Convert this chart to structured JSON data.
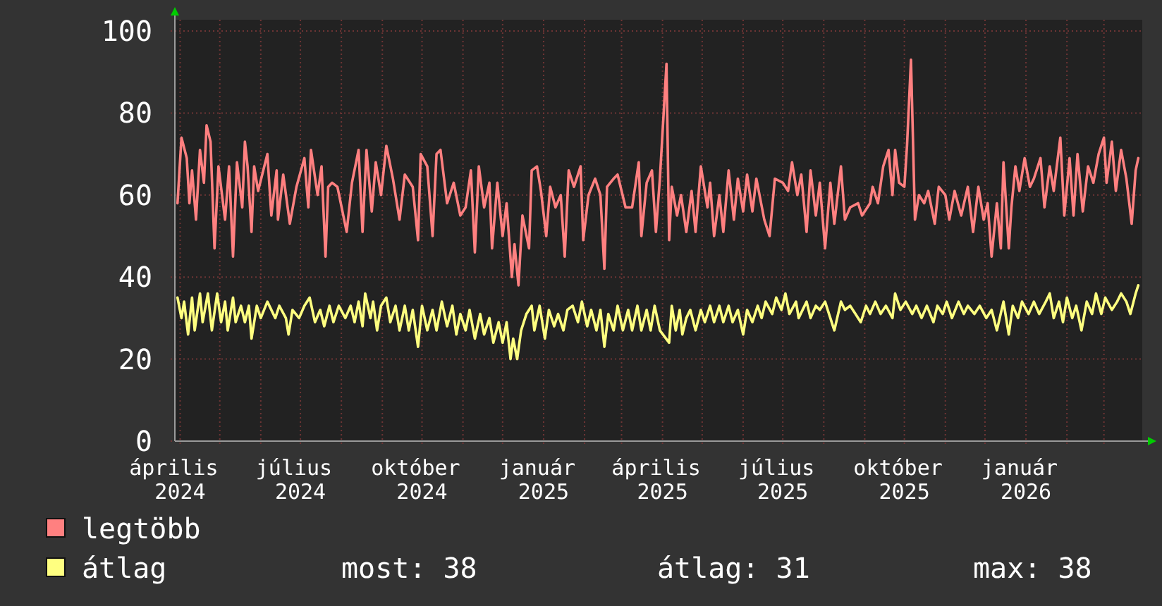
{
  "chart_data": {
    "type": "line",
    "xlim": [
      "2024-03-28",
      "2026-03-30"
    ],
    "ylim": [
      0,
      100
    ],
    "yticks": [
      0,
      20,
      40,
      60,
      80,
      100
    ],
    "xticks": [
      {
        "value": "2024-04-01",
        "label": "április 2024"
      },
      {
        "value": "2024-05-01",
        "label": null
      },
      {
        "value": "2024-06-01",
        "label": null
      },
      {
        "value": "2024-07-01",
        "label": "július 2024"
      },
      {
        "value": "2024-08-01",
        "label": null
      },
      {
        "value": "2024-09-01",
        "label": null
      },
      {
        "value": "2024-10-01",
        "label": "október 2024"
      },
      {
        "value": "2024-11-01",
        "label": null
      },
      {
        "value": "2024-12-01",
        "label": null
      },
      {
        "value": "2025-01-01",
        "label": "január 2025"
      },
      {
        "value": "2025-02-01",
        "label": null
      },
      {
        "value": "2025-03-01",
        "label": null
      },
      {
        "value": "2025-04-01",
        "label": "április 2025"
      },
      {
        "value": "2025-05-01",
        "label": null
      },
      {
        "value": "2025-06-01",
        "label": null
      },
      {
        "value": "2025-07-01",
        "label": "július 2025"
      },
      {
        "value": "2025-08-01",
        "label": null
      },
      {
        "value": "2025-09-01",
        "label": null
      },
      {
        "value": "2025-10-01",
        "label": "október 2025"
      },
      {
        "value": "2025-11-01",
        "label": null
      },
      {
        "value": "2025-12-01",
        "label": null
      },
      {
        "value": "2026-01-01",
        "label": "január 2026"
      },
      {
        "value": "2026-02-01",
        "label": null
      },
      {
        "value": "2026-03-01",
        "label": null
      }
    ],
    "grid": true,
    "legend": "bottom left",
    "annotations": [
      "most: 38",
      "átlag: 31",
      "max: 38"
    ],
    "series": [
      {
        "name": "legtöbb",
        "color": "#ff8080",
        "x": [
          "2024-03-30",
          "2024-04-02",
          "2024-04-06",
          "2024-04-08",
          "2024-04-10",
          "2024-04-13",
          "2024-04-16",
          "2024-04-19",
          "2024-04-21",
          "2024-04-24",
          "2024-04-27",
          "2024-04-30",
          "2024-05-05",
          "2024-05-08",
          "2024-05-11",
          "2024-05-14",
          "2024-05-18",
          "2024-05-20",
          "2024-05-22",
          "2024-05-25",
          "2024-05-27",
          "2024-05-30",
          "2024-06-06",
          "2024-06-09",
          "2024-06-13",
          "2024-06-14",
          "2024-06-18",
          "2024-06-23",
          "2024-06-28",
          "2024-07-04",
          "2024-07-07",
          "2024-07-09",
          "2024-07-14",
          "2024-07-17",
          "2024-07-20",
          "2024-07-22",
          "2024-07-25",
          "2024-07-29",
          "2024-08-05",
          "2024-08-09",
          "2024-08-14",
          "2024-08-17",
          "2024-08-20",
          "2024-08-24",
          "2024-08-27",
          "2024-08-31",
          "2024-09-04",
          "2024-09-09",
          "2024-09-14",
          "2024-09-18",
          "2024-09-24",
          "2024-09-28",
          "2024-09-30",
          "2024-10-05",
          "2024-10-09",
          "2024-10-12",
          "2024-10-15",
          "2024-10-20",
          "2024-10-25",
          "2024-10-30",
          "2024-11-03",
          "2024-11-07",
          "2024-11-10",
          "2024-11-13",
          "2024-11-17",
          "2024-11-21",
          "2024-11-23",
          "2024-11-27",
          "2024-12-01",
          "2024-12-04",
          "2024-12-08",
          "2024-12-10",
          "2024-12-13",
          "2024-12-16",
          "2024-12-21",
          "2024-12-23",
          "2024-12-27",
          "2024-12-30",
          "2025-01-03",
          "2025-01-06",
          "2025-01-10",
          "2025-01-14",
          "2025-01-17",
          "2025-01-20",
          "2025-01-24",
          "2025-01-29",
          "2025-01-31",
          "2025-02-04",
          "2025-02-09",
          "2025-02-13",
          "2025-02-16",
          "2025-02-18",
          "2025-02-23",
          "2025-02-26",
          "2025-03-04",
          "2025-03-09",
          "2025-03-14",
          "2025-03-16",
          "2025-03-20",
          "2025-03-24",
          "2025-03-27",
          "2025-03-30",
          "2025-04-04",
          "2025-04-06",
          "2025-04-08",
          "2025-04-12",
          "2025-04-15",
          "2025-04-19",
          "2025-04-23",
          "2025-04-26",
          "2025-04-30",
          "2025-05-05",
          "2025-05-07",
          "2025-05-10",
          "2025-05-14",
          "2025-05-17",
          "2025-05-21",
          "2025-05-25",
          "2025-05-28",
          "2025-06-01",
          "2025-06-04",
          "2025-06-08",
          "2025-06-11",
          "2025-06-17",
          "2025-06-21",
          "2025-06-25",
          "2025-07-01",
          "2025-07-05",
          "2025-07-08",
          "2025-07-12",
          "2025-07-15",
          "2025-07-19",
          "2025-07-22",
          "2025-07-26",
          "2025-07-29",
          "2025-08-02",
          "2025-08-06",
          "2025-08-09",
          "2025-08-14",
          "2025-08-17",
          "2025-08-21",
          "2025-08-27",
          "2025-08-30",
          "2025-09-05",
          "2025-09-07",
          "2025-09-11",
          "2025-09-15",
          "2025-09-19",
          "2025-09-22",
          "2025-09-24",
          "2025-09-27",
          "2025-10-01",
          "2025-10-03",
          "2025-10-06",
          "2025-10-09",
          "2025-10-12",
          "2025-10-16",
          "2025-10-19",
          "2025-10-24",
          "2025-10-27",
          "2025-11-01",
          "2025-11-04",
          "2025-11-08",
          "2025-11-13",
          "2025-11-18",
          "2025-11-22",
          "2025-11-26",
          "2025-11-30",
          "2025-12-03",
          "2025-12-06",
          "2025-12-10",
          "2025-12-13",
          "2025-12-15",
          "2025-12-19",
          "2025-12-21",
          "2025-12-24",
          "2025-12-27",
          "2025-12-31",
          "2026-01-04",
          "2026-01-07",
          "2026-01-12",
          "2026-01-15",
          "2026-01-19",
          "2026-01-22",
          "2026-01-27",
          "2026-01-30",
          "2026-02-03",
          "2026-02-06",
          "2026-02-09",
          "2026-02-13",
          "2026-02-17",
          "2026-02-21",
          "2026-02-25",
          "2026-03-01",
          "2026-03-03",
          "2026-03-07",
          "2026-03-10",
          "2026-03-14",
          "2026-03-18",
          "2026-03-22",
          "2026-03-25",
          "2026-03-27"
        ],
        "values": [
          58,
          74,
          69,
          58,
          66,
          54,
          71,
          63,
          77,
          73,
          47,
          67,
          54,
          67,
          45,
          68,
          57,
          73,
          67,
          51,
          67,
          61,
          70,
          55,
          66,
          54,
          65,
          53,
          62,
          69,
          57,
          71,
          60,
          67,
          45,
          62,
          63,
          62,
          51,
          63,
          71,
          51,
          71,
          56,
          68,
          60,
          72,
          64,
          54,
          65,
          62,
          49,
          70,
          67,
          50,
          70,
          71,
          58,
          63,
          55,
          57,
          66,
          46,
          67,
          57,
          63,
          47,
          63,
          50,
          58,
          40,
          48,
          38,
          55,
          47,
          66,
          67,
          61,
          50,
          62,
          57,
          60,
          45,
          66,
          62,
          67,
          49,
          60,
          64,
          60,
          42,
          62,
          64,
          65,
          57,
          57,
          68,
          50,
          63,
          66,
          51,
          64,
          92,
          49,
          62,
          55,
          60,
          51,
          61,
          51,
          67,
          57,
          63,
          50,
          60,
          51,
          66,
          54,
          64,
          56,
          65,
          56,
          64,
          54,
          50,
          64,
          63,
          61,
          68,
          60,
          65,
          51,
          66,
          55,
          63,
          47,
          63,
          53,
          67,
          54,
          57,
          58,
          55,
          58,
          62,
          58,
          67,
          71,
          60,
          71,
          63,
          62,
          72,
          93,
          54,
          60,
          58,
          61,
          53,
          62,
          60,
          54,
          61,
          55,
          62,
          51,
          62,
          54,
          58,
          45,
          58,
          47,
          68,
          47,
          57,
          67,
          61,
          69,
          62,
          64,
          69,
          57,
          67,
          61,
          74,
          55,
          69,
          55,
          70,
          56,
          67,
          63,
          70,
          74,
          63,
          73,
          61,
          71,
          64,
          53,
          66,
          69
        ]
      },
      {
        "name": "átlag",
        "color": "#ffff80",
        "x": [
          "2024-03-30",
          "2024-04-02",
          "2024-04-04",
          "2024-04-07",
          "2024-04-10",
          "2024-04-12",
          "2024-04-16",
          "2024-04-18",
          "2024-04-22",
          "2024-04-25",
          "2024-04-29",
          "2024-05-02",
          "2024-05-05",
          "2024-05-07",
          "2024-05-11",
          "2024-05-13",
          "2024-05-17",
          "2024-05-20",
          "2024-05-23",
          "2024-05-25",
          "2024-05-29",
          "2024-06-01",
          "2024-06-06",
          "2024-06-12",
          "2024-06-15",
          "2024-06-20",
          "2024-06-22",
          "2024-06-25",
          "2024-06-30",
          "2024-07-04",
          "2024-07-08",
          "2024-07-12",
          "2024-07-16",
          "2024-07-19",
          "2024-07-23",
          "2024-07-26",
          "2024-07-30",
          "2024-08-04",
          "2024-08-08",
          "2024-08-11",
          "2024-08-14",
          "2024-08-17",
          "2024-08-19",
          "2024-08-23",
          "2024-08-25",
          "2024-08-28",
          "2024-08-31",
          "2024-09-04",
          "2024-09-07",
          "2024-09-11",
          "2024-09-14",
          "2024-09-18",
          "2024-09-21",
          "2024-09-24",
          "2024-09-28",
          "2024-10-01",
          "2024-10-05",
          "2024-10-09",
          "2024-10-12",
          "2024-10-16",
          "2024-10-20",
          "2024-10-24",
          "2024-10-27",
          "2024-10-30",
          "2024-11-03",
          "2024-11-06",
          "2024-11-10",
          "2024-11-14",
          "2024-11-17",
          "2024-11-21",
          "2024-11-24",
          "2024-11-28",
          "2024-12-01",
          "2024-12-04",
          "2024-12-07",
          "2024-12-09",
          "2024-12-12",
          "2024-12-15",
          "2024-12-19",
          "2024-12-23",
          "2024-12-25",
          "2024-12-29",
          "2025-01-02",
          "2025-01-05",
          "2025-01-09",
          "2025-01-12",
          "2025-01-16",
          "2025-01-19",
          "2025-01-23",
          "2025-01-27",
          "2025-01-30",
          "2025-02-03",
          "2025-02-06",
          "2025-02-10",
          "2025-02-13",
          "2025-02-16",
          "2025-02-19",
          "2025-02-23",
          "2025-02-26",
          "2025-03-02",
          "2025-03-06",
          "2025-03-09",
          "2025-03-13",
          "2025-03-16",
          "2025-03-20",
          "2025-03-23",
          "2025-03-26",
          "2025-03-30",
          "2025-04-06",
          "2025-04-08",
          "2025-04-11",
          "2025-04-14",
          "2025-04-16",
          "2025-04-19",
          "2025-04-22",
          "2025-04-26",
          "2025-04-30",
          "2025-05-03",
          "2025-05-07",
          "2025-05-10",
          "2025-05-14",
          "2025-05-17",
          "2025-05-21",
          "2025-05-24",
          "2025-05-28",
          "2025-06-01",
          "2025-06-04",
          "2025-06-08",
          "2025-06-12",
          "2025-06-15",
          "2025-06-18",
          "2025-06-23",
          "2025-06-26",
          "2025-06-30",
          "2025-07-03",
          "2025-07-06",
          "2025-07-11",
          "2025-07-13",
          "2025-07-19",
          "2025-07-22",
          "2025-07-26",
          "2025-07-29",
          "2025-08-02",
          "2025-08-05",
          "2025-08-09",
          "2025-08-14",
          "2025-08-17",
          "2025-08-21",
          "2025-08-25",
          "2025-08-29",
          "2025-09-02",
          "2025-09-05",
          "2025-09-09",
          "2025-09-13",
          "2025-09-17",
          "2025-09-22",
          "2025-09-24",
          "2025-09-28",
          "2025-10-02",
          "2025-10-07",
          "2025-10-10",
          "2025-10-14",
          "2025-10-18",
          "2025-10-23",
          "2025-10-26",
          "2025-10-30",
          "2025-11-02",
          "2025-11-06",
          "2025-11-11",
          "2025-11-15",
          "2025-11-18",
          "2025-11-23",
          "2025-11-27",
          "2025-12-02",
          "2025-12-06",
          "2025-12-10",
          "2025-12-15",
          "2025-12-19",
          "2025-12-22",
          "2025-12-26",
          "2025-12-29",
          "2026-01-03",
          "2026-01-07",
          "2026-01-11",
          "2026-01-16",
          "2026-01-19",
          "2026-01-22",
          "2026-01-26",
          "2026-01-29",
          "2026-02-01",
          "2026-02-05",
          "2026-02-08",
          "2026-02-12",
          "2026-02-16",
          "2026-02-20",
          "2026-02-23",
          "2026-02-27",
          "2026-03-02",
          "2026-03-07",
          "2026-03-11",
          "2026-03-14",
          "2026-03-18",
          "2026-03-21",
          "2026-03-25",
          "2026-03-27"
        ],
        "values": [
          35,
          30,
          34,
          26,
          35,
          27,
          36,
          29,
          36,
          27,
          36,
          29,
          34,
          27,
          35,
          29,
          33,
          29,
          33,
          25,
          33,
          30,
          34,
          30,
          33,
          30,
          26,
          32,
          30,
          33,
          35,
          29,
          32,
          28,
          33,
          29,
          33,
          30,
          33,
          29,
          34,
          28,
          36,
          30,
          34,
          27,
          33,
          35,
          29,
          33,
          27,
          33,
          27,
          32,
          23,
          33,
          27,
          32,
          27,
          34,
          28,
          33,
          26,
          31,
          27,
          32,
          25,
          31,
          26,
          30,
          24,
          29,
          24,
          29,
          20,
          25,
          20,
          27,
          31,
          33,
          27,
          33,
          25,
          32,
          28,
          31,
          27,
          32,
          33,
          29,
          34,
          28,
          32,
          27,
          32,
          23,
          31,
          27,
          33,
          27,
          32,
          27,
          33,
          27,
          32,
          27,
          33,
          27,
          24,
          33,
          27,
          32,
          26,
          30,
          32,
          27,
          32,
          29,
          33,
          29,
          33,
          29,
          33,
          29,
          32,
          26,
          32,
          29,
          33,
          30,
          34,
          31,
          35,
          32,
          36,
          31,
          34,
          30,
          34,
          30,
          33,
          32,
          34,
          31,
          27,
          34,
          32,
          33,
          31,
          29,
          33,
          31,
          34,
          31,
          33,
          30,
          36,
          32,
          34,
          31,
          33,
          30,
          33,
          29,
          33,
          31,
          34,
          30,
          34,
          31,
          33,
          31,
          33,
          30,
          32,
          27,
          34,
          26,
          33,
          30,
          34,
          31,
          34,
          31,
          34,
          36,
          30,
          34,
          29,
          35,
          30,
          33,
          27,
          34,
          31,
          36,
          31,
          35,
          32,
          34,
          36,
          34,
          31,
          36,
          38
        ]
      }
    ]
  }
}
